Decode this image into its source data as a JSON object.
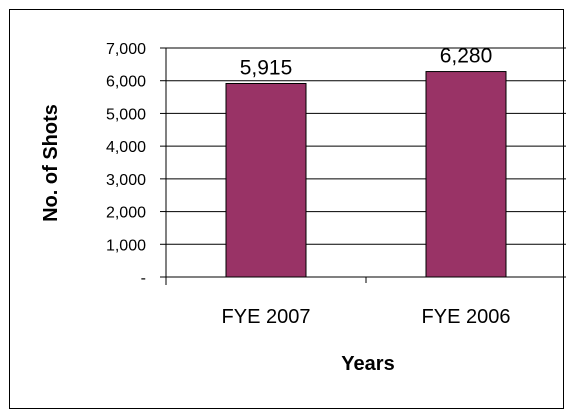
{
  "chart_data": {
    "type": "bar",
    "categories": [
      "FYE 2007",
      "FYE 2006"
    ],
    "values": [
      5915,
      6280
    ],
    "data_labels": [
      "5,915",
      "6,280"
    ],
    "xlabel": "Years",
    "ylabel": "No. of Shots",
    "ylim": [
      0,
      7000
    ],
    "yticks": [
      0,
      1000,
      2000,
      3000,
      4000,
      5000,
      6000,
      7000
    ],
    "ytick_labels": [
      "-",
      "1,000",
      "2,000",
      "3,000",
      "4,000",
      "5,000",
      "6,000",
      "7,000"
    ],
    "grid": true,
    "legend": "none",
    "bar_color": "#993366"
  }
}
